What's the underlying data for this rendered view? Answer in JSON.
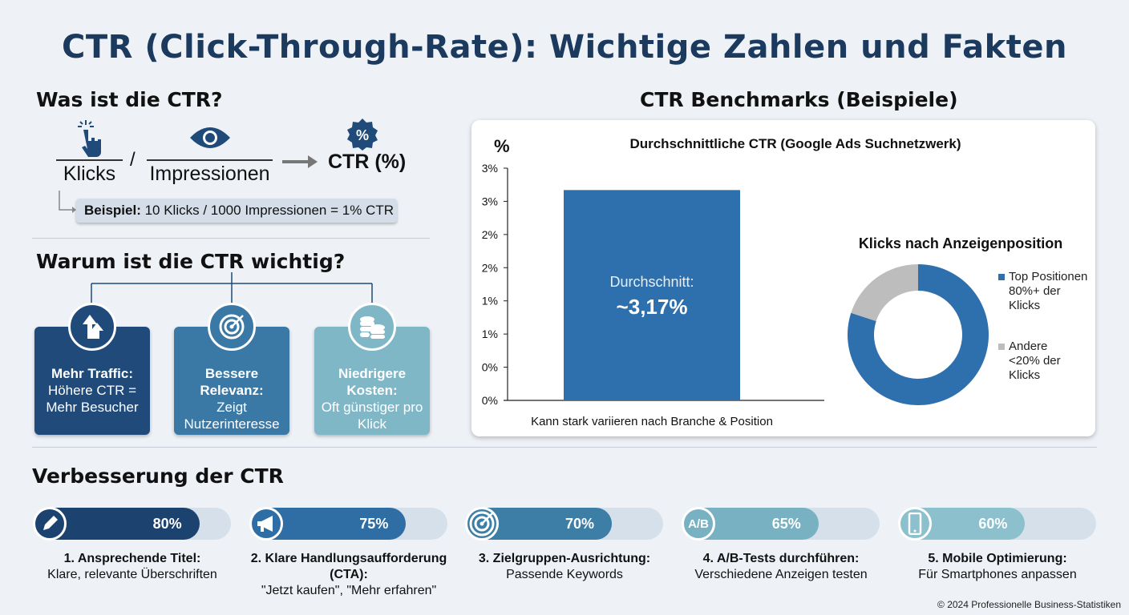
{
  "title": "CTR (Click-Through-Rate): Wichtige Zahlen und Fakten",
  "definition": {
    "heading": "Was ist die CTR?",
    "numerator": "Klicks",
    "slash": "/",
    "denominator": "Impressionen",
    "result": "CTR (%)",
    "example_label": "Beispiel:",
    "example_text": " 10 Klicks / 1000 Impressionen = 1% CTR"
  },
  "importance": {
    "heading": "Warum ist die CTR wichtig?",
    "cards": [
      {
        "title": "Mehr Traffic:",
        "text": "Höhere CTR = Mehr Besucher",
        "icon": "arrows-up-icon",
        "color": "#1f4a7a"
      },
      {
        "title": "Bessere Relevanz:",
        "text": "Zeigt Nutzerinteresse",
        "icon": "target-icon",
        "color": "#3a78a6"
      },
      {
        "title": "Niedrigere Kosten:",
        "text": "Oft günstiger pro Klick",
        "icon": "coins-icon",
        "color": "#80b7c7"
      }
    ]
  },
  "benchmarks": {
    "heading": "CTR Benchmarks (Beispiele)"
  },
  "chart_data": [
    {
      "type": "bar",
      "title": "Durchschnittliche CTR (Google Ads Suchnetzwerk)",
      "ylabel": "%",
      "ytick_labels": [
        "0%",
        "0%",
        "1%",
        "1%",
        "2%",
        "2%",
        "3%",
        "3%"
      ],
      "ylim": [
        0,
        3.5
      ],
      "categories": [
        ""
      ],
      "values": [
        3.17
      ],
      "bar_label_1": "Durchschnitt:",
      "bar_label_2": "~3,17%",
      "xlabel": "Kann stark variieren nach Branche & Position",
      "color": "#2e6fad",
      "grid": false
    },
    {
      "type": "pie",
      "title": "Klicks nach Anzeigenposition",
      "donut": true,
      "slices": [
        {
          "label": "Top Positionen 80%+ der Klicks",
          "value": 80,
          "color": "#2e6fad"
        },
        {
          "label": "Andere <20% der Klicks",
          "value": 20,
          "color": "#bdbdbd"
        }
      ],
      "legend": "right"
    }
  ],
  "improvement": {
    "heading": "Verbesserung der CTR",
    "items": [
      {
        "value": 80,
        "label": "80%",
        "title": "1. Ansprechende Titel:",
        "text": "Klare, relevante Überschriften",
        "icon": "pencil-icon",
        "color": "#1c4270"
      },
      {
        "value": 75,
        "label": "75%",
        "title": "2. Klare Handlungsaufforderung (CTA):",
        "text": "\"Jetzt kaufen\", \"Mehr erfahren\"",
        "icon": "megaphone-icon",
        "color": "#2f6ea4"
      },
      {
        "value": 70,
        "label": "70%",
        "title": "3. Zielgruppen-Ausrichtung:",
        "text": "Passende Keywords",
        "icon": "target-icon",
        "color": "#3d7ea6"
      },
      {
        "value": 65,
        "label": "65%",
        "title": "4. A/B-Tests durchführen:",
        "text": "Verschiedene Anzeigen testen",
        "icon": "ab-test-icon",
        "color": "#78b1c2",
        "icon_text": "A/B"
      },
      {
        "value": 60,
        "label": "60%",
        "title": "5. Mobile Optimierung:",
        "text": "Für Smartphones anpassen",
        "icon": "smartphone-icon",
        "color": "#8cc0cd"
      }
    ]
  },
  "footer": "© 2024 Professionelle Business-Statistiken"
}
